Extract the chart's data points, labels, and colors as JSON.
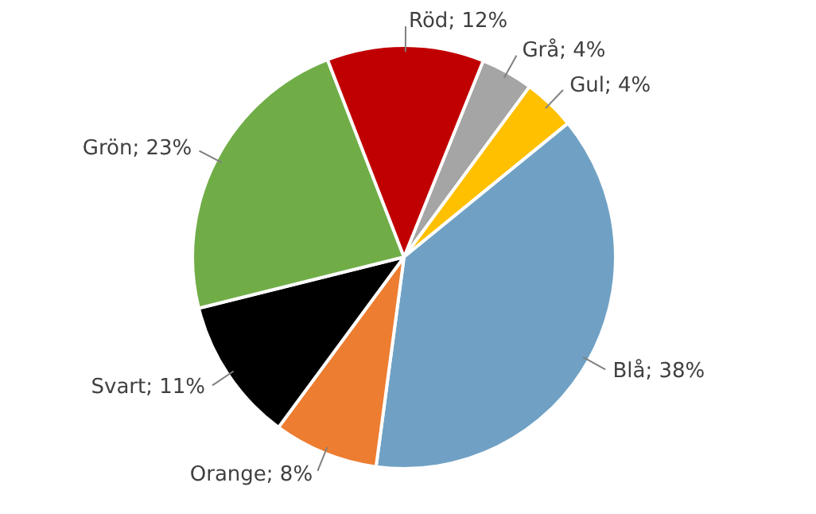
{
  "chart_data": {
    "type": "pie",
    "categories": [
      "Grå",
      "Gul",
      "Blå",
      "Orange",
      "Svart",
      "Grön",
      "Röd"
    ],
    "values": [
      4,
      4,
      38,
      8,
      11,
      23,
      12
    ],
    "value_labels": [
      "4%",
      "4%",
      "38%",
      "8%",
      "11%",
      "23%",
      "12%"
    ],
    "colors": [
      "#a5a5a5",
      "#ffc000",
      "#70a1c4",
      "#ed7d31",
      "#000000",
      "#70ad47",
      "#c00000"
    ],
    "legend": false
  }
}
